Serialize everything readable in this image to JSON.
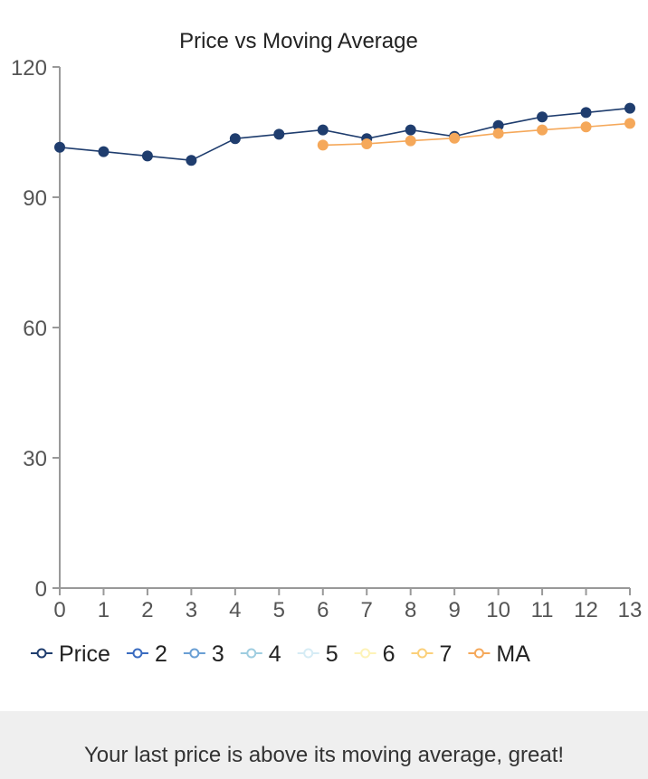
{
  "chart_data": {
    "type": "line",
    "title": "Price vs Moving Average",
    "xlabel": "",
    "ylabel": "",
    "x": [
      0,
      1,
      2,
      3,
      4,
      5,
      6,
      7,
      8,
      9,
      10,
      11,
      12,
      13
    ],
    "xlim": [
      0,
      13
    ],
    "ylim": [
      0,
      120
    ],
    "yticks": [
      0,
      30,
      60,
      90,
      120
    ],
    "grid": false,
    "legend_position": "bottom",
    "series": [
      {
        "name": "Price",
        "color": "#1f3d6e",
        "values": [
          101.5,
          100.5,
          99.5,
          98.5,
          103.5,
          104.5,
          105.5,
          103.5,
          105.5,
          104,
          106.5,
          108.5,
          109.5,
          110.5
        ]
      },
      {
        "name": "MA",
        "color": "#f5a85a",
        "values": [
          null,
          null,
          null,
          null,
          null,
          null,
          102,
          102.3,
          103,
          103.6,
          104.7,
          105.5,
          106.2,
          107
        ]
      }
    ],
    "legend": [
      {
        "label": "Price",
        "color": "#1f3d6e"
      },
      {
        "label": "2",
        "color": "#3b6cc0"
      },
      {
        "label": "3",
        "color": "#6a9fd4"
      },
      {
        "label": "4",
        "color": "#9fcde0"
      },
      {
        "label": "5",
        "color": "#d6ecf5"
      },
      {
        "label": "6",
        "color": "#fdf3b8"
      },
      {
        "label": "7",
        "color": "#fbd07a"
      },
      {
        "label": "MA",
        "color": "#f5a85a"
      }
    ]
  },
  "status": {
    "message": "Your last price is above its moving average, great!"
  }
}
